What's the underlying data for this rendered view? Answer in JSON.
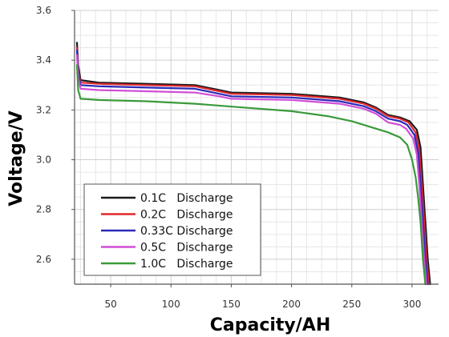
{
  "chart_data": {
    "type": "line",
    "xlabel": "Capacity/AH",
    "ylabel": "Voltage/V",
    "xlim": [
      20,
      322
    ],
    "ylim": [
      2.5,
      3.6
    ],
    "xticks": [
      50,
      100,
      150,
      200,
      250,
      300
    ],
    "yticks": [
      2.6,
      2.8,
      3.0,
      3.2,
      3.4,
      3.6
    ],
    "xtick_labels": [
      "50",
      "100",
      "150",
      "200",
      "250",
      "300"
    ],
    "ytick_labels": [
      "2.6",
      "2.8",
      "3.0",
      "3.2",
      "3.4",
      "3.6"
    ],
    "grid": true,
    "legend_position": "bottom-left",
    "series": [
      {
        "name": "0.1C   Discharge",
        "color": "#1a1a1a",
        "x": [
          22,
          23,
          25,
          40,
          80,
          120,
          140,
          150,
          200,
          240,
          260,
          270,
          280,
          290,
          298,
          304,
          307,
          309,
          311,
          313,
          315
        ],
        "y": [
          3.47,
          3.38,
          3.32,
          3.31,
          3.305,
          3.3,
          3.28,
          3.27,
          3.265,
          3.25,
          3.23,
          3.21,
          3.18,
          3.17,
          3.155,
          3.12,
          3.05,
          2.9,
          2.75,
          2.6,
          2.5
        ]
      },
      {
        "name": "0.2C   Discharge",
        "color": "#e0282e",
        "x": [
          22,
          23,
          25,
          40,
          80,
          120,
          140,
          150,
          200,
          240,
          260,
          270,
          280,
          290,
          297,
          303,
          306,
          308,
          310,
          312,
          314
        ],
        "y": [
          3.45,
          3.36,
          3.31,
          3.305,
          3.3,
          3.295,
          3.275,
          3.265,
          3.26,
          3.245,
          3.225,
          3.205,
          3.175,
          3.165,
          3.15,
          3.11,
          3.04,
          2.9,
          2.75,
          2.6,
          2.5
        ]
      },
      {
        "name": "0.33C Discharge",
        "color": "#2b2bb8",
        "x": [
          22,
          23,
          25,
          40,
          80,
          120,
          140,
          150,
          200,
          240,
          260,
          270,
          280,
          290,
          296,
          302,
          305,
          307,
          309,
          311,
          313
        ],
        "y": [
          3.44,
          3.35,
          3.3,
          3.295,
          3.29,
          3.285,
          3.265,
          3.255,
          3.25,
          3.235,
          3.215,
          3.195,
          3.165,
          3.155,
          3.14,
          3.1,
          3.03,
          2.9,
          2.75,
          2.6,
          2.5
        ]
      },
      {
        "name": "0.5C   Discharge",
        "color": "#d24ed6",
        "x": [
          22,
          23,
          25,
          40,
          80,
          120,
          140,
          150,
          200,
          240,
          260,
          270,
          280,
          290,
          295,
          301,
          304,
          306,
          308,
          310,
          312
        ],
        "y": [
          3.42,
          3.33,
          3.285,
          3.28,
          3.275,
          3.27,
          3.255,
          3.245,
          3.24,
          3.225,
          3.205,
          3.185,
          3.15,
          3.14,
          3.125,
          3.085,
          3.02,
          2.9,
          2.75,
          2.6,
          2.5
        ]
      },
      {
        "name": "1.0C   Discharge",
        "color": "#3a9a3a",
        "x": [
          22,
          23,
          25,
          40,
          80,
          120,
          160,
          200,
          230,
          250,
          270,
          280,
          290,
          296,
          300,
          303,
          305,
          307,
          309,
          311
        ],
        "y": [
          3.38,
          3.28,
          3.245,
          3.24,
          3.235,
          3.225,
          3.21,
          3.195,
          3.175,
          3.155,
          3.125,
          3.11,
          3.09,
          3.06,
          3.0,
          2.93,
          2.85,
          2.75,
          2.6,
          2.5
        ]
      }
    ]
  }
}
